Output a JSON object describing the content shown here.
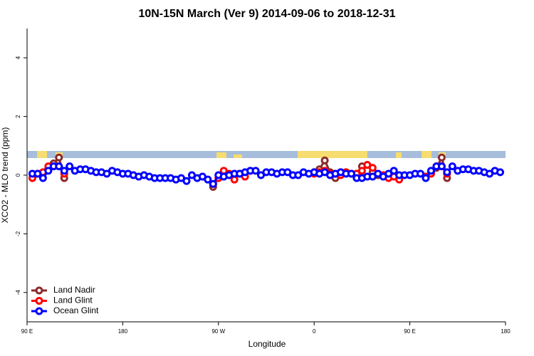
{
  "chart_data": {
    "type": "line",
    "title": "10N-15N March (Ver 9)   2014-09-06 to 2018-12-31",
    "x_label": "Longitude",
    "y_label": "XCO2 - MLO trend (ppm)",
    "xlim": [
      90,
      540
    ],
    "ylim": [
      -5,
      5
    ],
    "xticks": [
      {
        "value": 90,
        "label": "90 E"
      },
      180,
      {
        "value": 270,
        "label": "90 W"
      },
      {
        "value": 360,
        "label": "0"
      },
      {
        "value": 450,
        "label": "90 E"
      },
      {
        "value": 540,
        "label": "180"
      }
    ],
    "yticks": [
      -4,
      -2,
      0,
      2,
      4
    ],
    "legend": "bottom-left",
    "x": [
      95,
      100,
      105,
      110,
      115,
      120,
      125,
      130,
      135,
      140,
      145,
      150,
      155,
      160,
      165,
      170,
      175,
      180,
      185,
      190,
      195,
      200,
      205,
      210,
      215,
      220,
      225,
      230,
      235,
      240,
      245,
      250,
      255,
      260,
      265,
      270,
      275,
      280,
      285,
      290,
      295,
      300,
      305,
      310,
      315,
      320,
      325,
      330,
      335,
      340,
      345,
      350,
      355,
      360,
      365,
      370,
      375,
      380,
      385,
      390,
      395,
      400,
      405,
      410,
      415,
      420,
      425,
      430,
      435,
      440,
      445,
      450,
      455,
      460,
      465,
      470,
      475,
      480,
      485,
      490,
      495,
      500,
      505,
      510,
      515,
      520,
      525,
      530,
      535
    ],
    "series": [
      {
        "name": "Land Nadir",
        "color": "#8b2a2a",
        "values": [
          null,
          null,
          null,
          0.25,
          0.4,
          0.6,
          -0.1,
          null,
          null,
          null,
          null,
          null,
          null,
          null,
          null,
          null,
          null,
          null,
          null,
          null,
          null,
          null,
          null,
          null,
          null,
          null,
          null,
          null,
          null,
          null,
          null,
          null,
          null,
          null,
          -0.4,
          -0.1,
          0.1,
          null,
          null,
          null,
          null,
          null,
          null,
          null,
          null,
          null,
          null,
          null,
          null,
          null,
          null,
          null,
          null,
          0.1,
          0.2,
          0.5,
          0.1,
          -0.1,
          0.1,
          0.1,
          0.05,
          0.05,
          0.3,
          0.35,
          0.1,
          0,
          null,
          null,
          null,
          null,
          null,
          null,
          null,
          null,
          null,
          0.1,
          0.25,
          0.6,
          -0.1,
          null,
          null,
          null,
          null,
          null,
          null,
          null,
          null,
          null,
          null
        ]
      },
      {
        "name": "Land Glint",
        "color": "#ff0000",
        "values": [
          -0.1,
          0.05,
          0.1,
          0.3,
          0.3,
          0.3,
          0.05,
          null,
          null,
          null,
          null,
          null,
          null,
          null,
          null,
          null,
          null,
          null,
          null,
          null,
          null,
          null,
          null,
          null,
          null,
          null,
          null,
          null,
          null,
          null,
          null,
          null,
          null,
          null,
          -0.3,
          -0.1,
          0.15,
          0.05,
          -0.15,
          0.05,
          -0.05,
          0.15,
          null,
          null,
          null,
          null,
          null,
          null,
          null,
          null,
          null,
          null,
          null,
          0.05,
          0.1,
          0.15,
          0.05,
          0.05,
          0,
          0.1,
          0.05,
          0.05,
          0.15,
          0.35,
          0.25,
          0.05,
          0,
          -0.1,
          -0.05,
          -0.15,
          null,
          null,
          null,
          null,
          -0.05,
          0.05,
          0.3,
          0.3,
          0.05,
          null,
          null,
          null,
          null,
          null,
          null,
          null,
          null,
          null,
          null
        ]
      },
      {
        "name": "Ocean Glint",
        "color": "#0000ff",
        "values": [
          0.05,
          0.05,
          -0.1,
          0.15,
          0.3,
          0.3,
          0.15,
          0.3,
          0.15,
          0.2,
          0.2,
          0.15,
          0.1,
          0.1,
          0.05,
          0.15,
          0.1,
          0.05,
          0.05,
          0,
          -0.05,
          0,
          -0.05,
          -0.1,
          -0.1,
          -0.1,
          -0.1,
          -0.15,
          -0.1,
          -0.2,
          0,
          -0.1,
          -0.05,
          -0.15,
          -0.3,
          0,
          -0.05,
          0,
          0.05,
          0.05,
          0.1,
          0.15,
          0.15,
          0,
          0.1,
          0.1,
          0.05,
          0.1,
          0.1,
          0,
          0,
          0.1,
          0.05,
          0.1,
          0.05,
          0.1,
          0,
          0.05,
          0.1,
          0.05,
          0.05,
          -0.1,
          -0.1,
          -0.05,
          -0.05,
          0.05,
          -0.05,
          0.05,
          0.15,
          0,
          0,
          0,
          0.05,
          0.05,
          -0.1,
          0.15,
          0.3,
          0.3,
          0.1,
          0.3,
          0.15,
          0.2,
          0.2,
          0.15,
          0.15,
          0.1,
          0.05,
          0.15,
          0.1
        ]
      }
    ]
  }
}
